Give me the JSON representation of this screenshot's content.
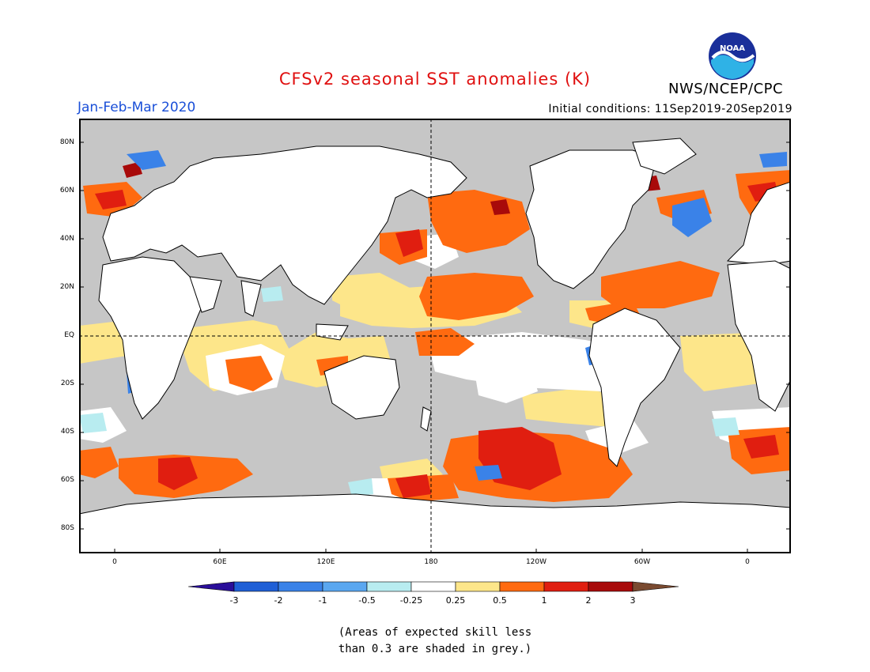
{
  "header": {
    "title": "CFSv2 seasonal SST anomalies (K)",
    "season": "Jan-Feb-Mar 2020",
    "initial_conditions": "Initial conditions: 11Sep2019-20Sep2019",
    "agency": "NWS/NCEP/CPC",
    "logo_text": "NOAA"
  },
  "axes": {
    "lat_labels": [
      "80N",
      "60N",
      "40N",
      "20N",
      "EQ",
      "20S",
      "40S",
      "60S",
      "80S"
    ],
    "lon_labels": [
      "0",
      "60E",
      "120E",
      "180",
      "120W",
      "60W",
      "0"
    ]
  },
  "colorbar": {
    "ticks": [
      "-3",
      "-2",
      "-1",
      "-0.5",
      "-0.25",
      "0.25",
      "0.5",
      "1",
      "2",
      "3"
    ],
    "colors": [
      "#2a0e9a",
      "#1f5fd6",
      "#3a82e8",
      "#5aa7f0",
      "#b8ecf0",
      "#ffffff",
      "#fde68a",
      "#ff6a10",
      "#e01e10",
      "#a80a0a",
      "#7a4a30"
    ]
  },
  "note": {
    "line1": "(Areas of expected skill less",
    "line2": "than 0.3 are shaded in grey.)"
  },
  "colors": {
    "land": "#ffffff",
    "no_skill": "#c6c6c6",
    "title": "#e01010",
    "season": "#1a4fd8"
  }
}
